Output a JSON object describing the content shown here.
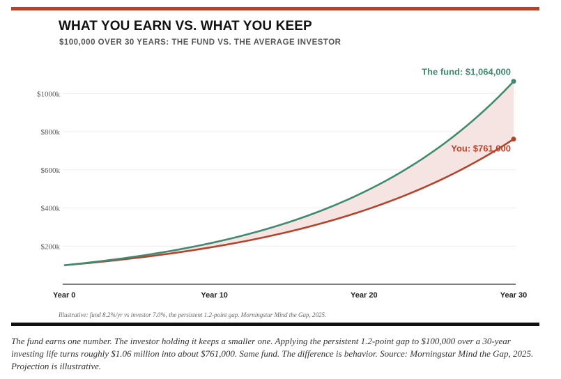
{
  "header": {
    "title": "WHAT YOU EARN VS. WHAT YOU KEEP",
    "subtitle": "$100,000 OVER 30 YEARS: THE FUND VS. THE AVERAGE INVESTOR"
  },
  "colors": {
    "accent_rule": "#b5432c",
    "fund_line": "#3f8a70",
    "investor_line": "#b5432c",
    "gap_fill": "#f6e4e2",
    "bottom_rule": "#111111"
  },
  "chart_data": {
    "type": "line",
    "x_ticks": [
      0,
      10,
      20,
      30
    ],
    "x_tick_labels": [
      "Year 0",
      "Year 10",
      "Year 20",
      "Year 30"
    ],
    "y_ticks": [
      200000,
      400000,
      600000,
      800000,
      1000000
    ],
    "y_tick_labels": [
      "$200k",
      "$400k",
      "$600k",
      "$800k",
      "$1000k"
    ],
    "xlim": [
      0,
      30
    ],
    "ylim": [
      0,
      1100000
    ],
    "grid": true,
    "shaded_gap_between_series": true,
    "series": [
      {
        "key": "fund",
        "rate": 0.082,
        "start": 100000,
        "end_value": 1064000,
        "color": "#3f8a70",
        "end_label": "The fund: $1,064,000",
        "end_label_position": "above"
      },
      {
        "key": "investor",
        "rate": 0.07,
        "start": 100000,
        "end_value": 761000,
        "color": "#b5432c",
        "end_label": "You: $761,000",
        "end_label_position": "left"
      }
    ]
  },
  "note": "Illustrative: fund 8.2%/yr vs investor 7.0%, the persistent 1.2-point gap. Morningstar Mind the Gap, 2025.",
  "caption": "The fund earns one number. The investor holding it keeps a smaller one. Applying the persistent 1.2-point gap to $100,000 over a 30-year investing life turns roughly $1.06 million into about $761,000. Same fund. The difference is behavior. Source: Morningstar Mind the Gap, 2025. Projection is illustrative."
}
